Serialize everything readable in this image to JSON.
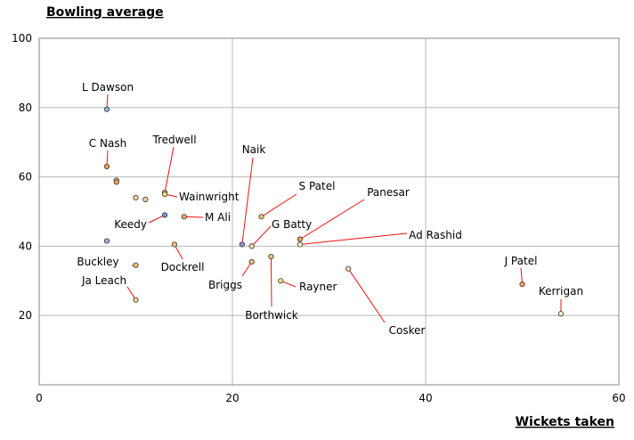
{
  "chart_data": {
    "type": "scatter",
    "xlabel": "Wickets taken",
    "ylabel": "Bowling average",
    "xlim": [
      0,
      60
    ],
    "ylim": [
      0,
      100
    ],
    "xticks": [
      0,
      20,
      40,
      60
    ],
    "yticks": [
      20,
      40,
      60,
      80,
      100
    ],
    "grid": true,
    "points": [
      {
        "label": "L Dawson",
        "x": 7,
        "y": 79.5,
        "color": "#9bb3d6"
      },
      {
        "label": "C Nash",
        "x": 7,
        "y": 63,
        "color": "#f2a25a"
      },
      {
        "label": "",
        "x": 8,
        "y": 59,
        "color": "#f5d08a"
      },
      {
        "label": "",
        "x": 8,
        "y": 58.5,
        "color": "#f2a25a"
      },
      {
        "label": "Tredwell",
        "x": 13,
        "y": 55.5,
        "color": "#f2a25a"
      },
      {
        "label": "Wainwright",
        "x": 13,
        "y": 55,
        "color": "#f5e07a"
      },
      {
        "label": "",
        "x": 10,
        "y": 54,
        "color": "#f2d0a0"
      },
      {
        "label": "",
        "x": 11,
        "y": 53.5,
        "color": "#f2d0a0"
      },
      {
        "label": "Keedy",
        "x": 13,
        "y": 49,
        "color": "#6f9bd8"
      },
      {
        "label": "M Ali",
        "x": 15,
        "y": 48.5,
        "color": "#f2a25a"
      },
      {
        "label": "",
        "x": 7,
        "y": 41.5,
        "color": "#9bb3d6"
      },
      {
        "label": "Dockrell",
        "x": 14,
        "y": 40.5,
        "color": "#f5c070"
      },
      {
        "label": "Naik",
        "x": 21,
        "y": 40.5,
        "color": "#8899cc"
      },
      {
        "label": "G Batty",
        "x": 22,
        "y": 40,
        "color": "#f5d8b0"
      },
      {
        "label": "S Patel",
        "x": 23,
        "y": 48.5,
        "color": "#f5c070"
      },
      {
        "label": "Panesar",
        "x": 27,
        "y": 42,
        "color": "#f2a25a"
      },
      {
        "label": "Ad Rashid",
        "x": 27,
        "y": 40.5,
        "color": "#f5f0c8"
      },
      {
        "label": "Buckley",
        "x": 10,
        "y": 34.5,
        "color": "#f5c070"
      },
      {
        "label": "Briggs",
        "x": 22,
        "y": 35.5,
        "color": "#f5c070"
      },
      {
        "label": "Borthwick",
        "x": 24,
        "y": 37,
        "color": "#f5c070"
      },
      {
        "label": "Cosker",
        "x": 32,
        "y": 33.5,
        "color": "#f5e0b0"
      },
      {
        "label": "Rayner",
        "x": 25,
        "y": 30,
        "color": "#f5e07a"
      },
      {
        "label": "Ja Leach",
        "x": 10,
        "y": 24.5,
        "color": "#f5d08a"
      },
      {
        "label": "J Patel",
        "x": 50,
        "y": 29,
        "color": "#f2a25a"
      },
      {
        "label": "Kerrigan",
        "x": 54,
        "y": 20.5,
        "color": "#f5f0d0"
      }
    ]
  }
}
